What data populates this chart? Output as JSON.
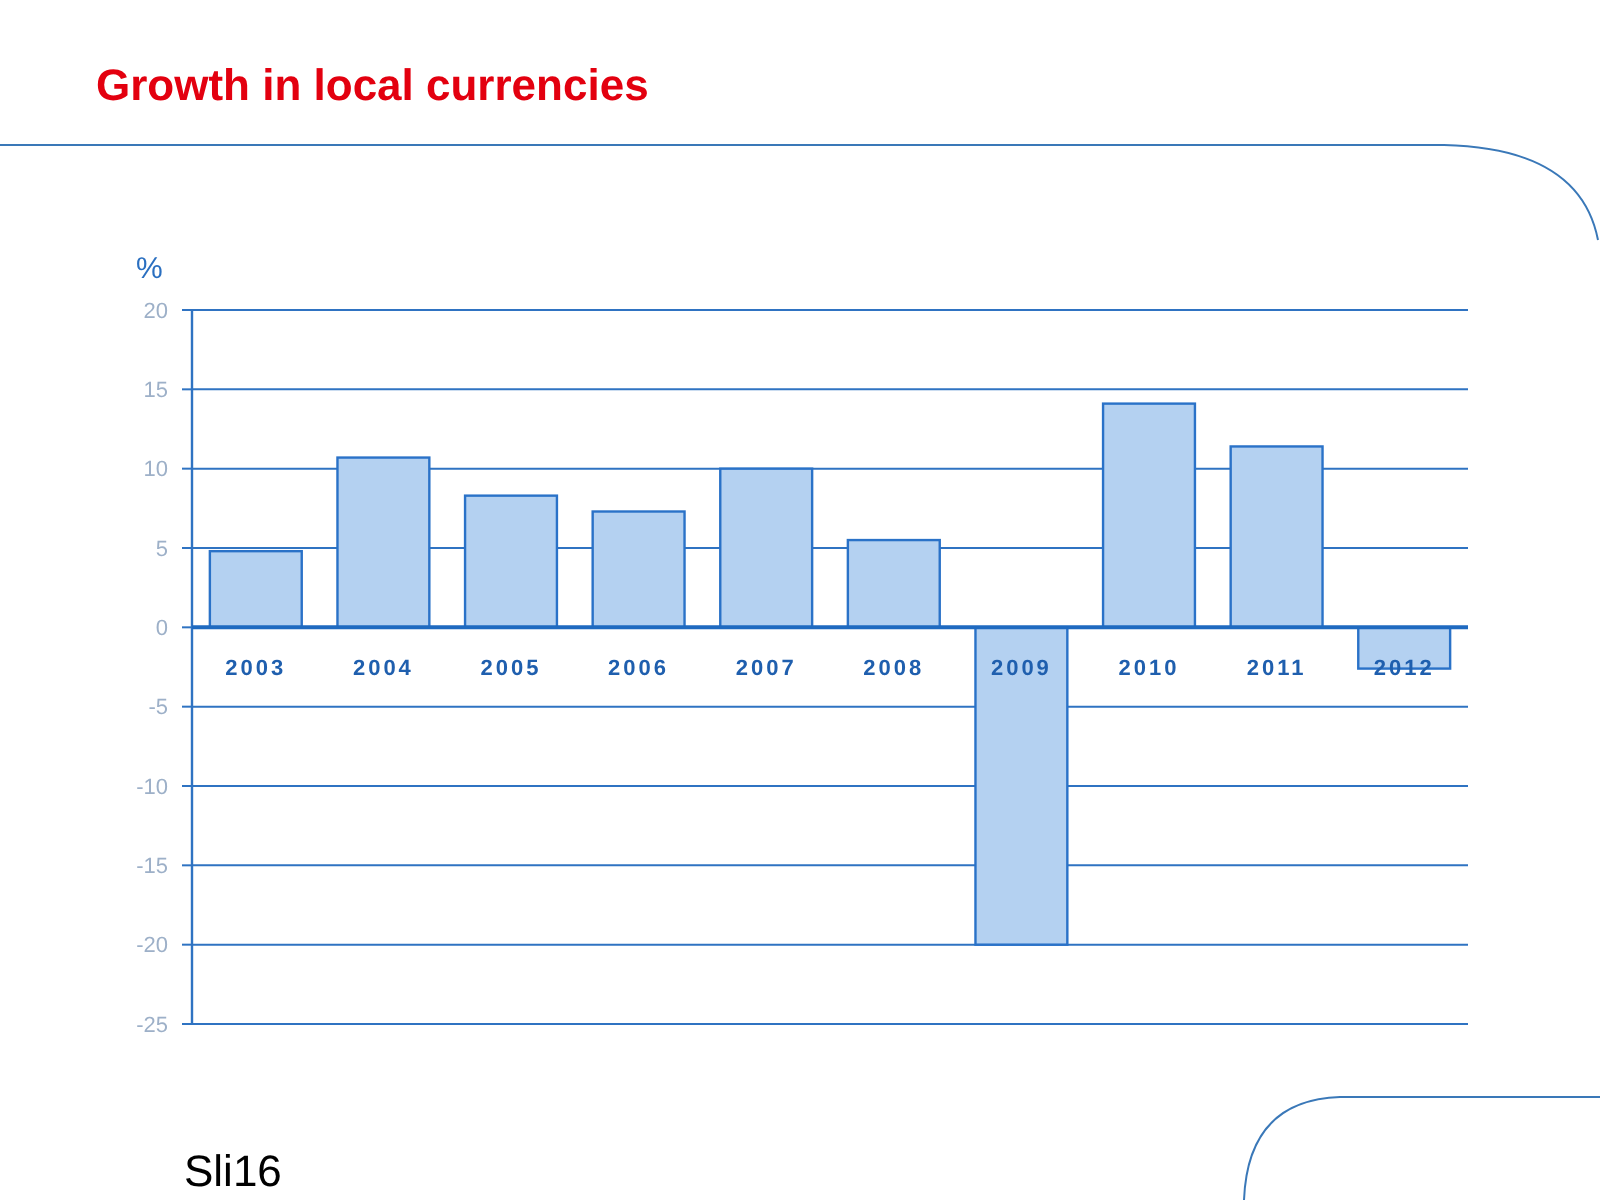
{
  "chart_data": {
    "type": "bar",
    "title": "Growth in local currencies",
    "ylabel": "%",
    "categories": [
      "2003",
      "2004",
      "2005",
      "2006",
      "2007",
      "2008",
      "2009",
      "2010",
      "2011",
      "2012"
    ],
    "values": [
      4.8,
      10.7,
      8.3,
      7.3,
      10.0,
      5.5,
      -20,
      14.1,
      11.4,
      -2.6
    ],
    "color": "#b4d1f1",
    "ylim": [
      -25,
      20
    ],
    "yticks": [
      -25,
      -20,
      -15,
      -10,
      -5,
      0,
      5,
      10,
      15,
      20
    ],
    "grid": "y",
    "annotations": [
      "Sli16"
    ]
  }
}
